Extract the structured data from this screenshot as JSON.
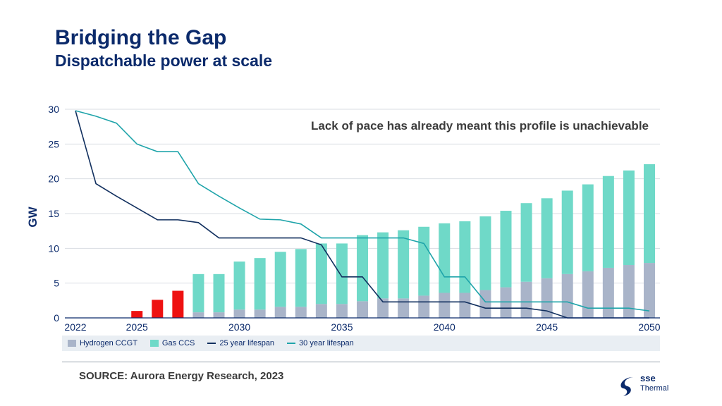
{
  "slide": {
    "title": "Bridging the Gap",
    "subtitle": "Dispatchable power at scale",
    "source": "SOURCE: Aurora Energy Research, 2023"
  },
  "logo": {
    "brand": "sse",
    "product": "Thermal",
    "icon": "sse-swirl-icon"
  },
  "colors": {
    "hydrogen": "#a9b4c9",
    "gas_ccs": "#6fd9c8",
    "red_bars": "#ee1111",
    "line_25": "#12305f",
    "line_30": "#1fa4aa",
    "axis_text": "#0b2a6b"
  },
  "chart_data": {
    "type": "bar",
    "ylabel": "GW",
    "ylim": [
      0,
      30
    ],
    "yticks": [
      0,
      5,
      10,
      15,
      20,
      25,
      30
    ],
    "xlim": [
      2022,
      2050
    ],
    "xticks": [
      2022,
      2025,
      2030,
      2035,
      2040,
      2045,
      2050
    ],
    "grid": true,
    "annotation": "Lack of pace has already meant this profile is unachievable",
    "red_bars": [
      {
        "x": 2025,
        "value": 1.0
      },
      {
        "x": 2026,
        "value": 2.6
      },
      {
        "x": 2027,
        "value": 3.9
      }
    ],
    "stacked_series": {
      "x": [
        2028,
        2029,
        2030,
        2031,
        2032,
        2033,
        2034,
        2035,
        2036,
        2037,
        2038,
        2039,
        2040,
        2041,
        2042,
        2043,
        2044,
        2045,
        2046,
        2047,
        2048,
        2049,
        2050
      ],
      "series": [
        {
          "name": "Hydrogen CCGT",
          "values": [
            0.8,
            0.8,
            1.2,
            1.2,
            1.6,
            1.6,
            2.0,
            2.0,
            2.4,
            2.8,
            2.8,
            3.2,
            3.6,
            3.6,
            4.0,
            4.4,
            5.2,
            5.7,
            6.3,
            6.7,
            7.2,
            7.6,
            7.9
          ]
        },
        {
          "name": "Gas CCS",
          "values": [
            5.5,
            5.5,
            6.9,
            7.4,
            7.9,
            8.3,
            8.7,
            8.7,
            9.5,
            9.5,
            9.8,
            9.9,
            10.0,
            10.3,
            10.6,
            11.0,
            11.3,
            11.5,
            12.0,
            12.5,
            13.2,
            13.6,
            14.2
          ]
        }
      ]
    },
    "lines": [
      {
        "name": "25 year lifespan",
        "x": [
          2022,
          2023,
          2024,
          2025,
          2026,
          2027,
          2028,
          2029,
          2030,
          2031,
          2032,
          2033,
          2034,
          2035,
          2036,
          2037,
          2038,
          2039,
          2040,
          2041,
          2042,
          2043,
          2044,
          2045,
          2046,
          2047,
          2048,
          2049,
          2050
        ],
        "values": [
          29.8,
          19.3,
          17.5,
          15.8,
          14.1,
          14.1,
          13.7,
          11.5,
          11.5,
          11.5,
          11.5,
          11.5,
          10.5,
          5.9,
          5.9,
          2.3,
          2.3,
          2.3,
          2.3,
          2.3,
          1.4,
          1.4,
          1.4,
          1.0,
          0.0,
          0.0,
          0.0,
          0.0,
          0.0
        ]
      },
      {
        "name": "30 year lifespan",
        "x": [
          2022,
          2023,
          2024,
          2025,
          2026,
          2027,
          2028,
          2029,
          2030,
          2031,
          2032,
          2033,
          2034,
          2035,
          2036,
          2037,
          2038,
          2039,
          2040,
          2041,
          2042,
          2043,
          2044,
          2045,
          2046,
          2047,
          2048,
          2049,
          2050
        ],
        "values": [
          29.8,
          29.0,
          28.0,
          25.0,
          23.9,
          23.9,
          19.3,
          17.5,
          15.8,
          14.2,
          14.1,
          13.5,
          11.5,
          11.5,
          11.5,
          11.5,
          11.5,
          10.7,
          5.9,
          5.9,
          2.3,
          2.3,
          2.3,
          2.3,
          2.3,
          1.4,
          1.4,
          1.4,
          1.0
        ]
      }
    ],
    "legend": [
      {
        "label": "Hydrogen CCGT",
        "kind": "bar",
        "color": "#a9b4c9"
      },
      {
        "label": "Gas CCS",
        "kind": "bar",
        "color": "#6fd9c8"
      },
      {
        "label": "25 year lifespan",
        "kind": "line",
        "color": "#12305f"
      },
      {
        "label": "30 year lifespan",
        "kind": "line",
        "color": "#1fa4aa"
      }
    ],
    "legend_position": "bottom"
  }
}
